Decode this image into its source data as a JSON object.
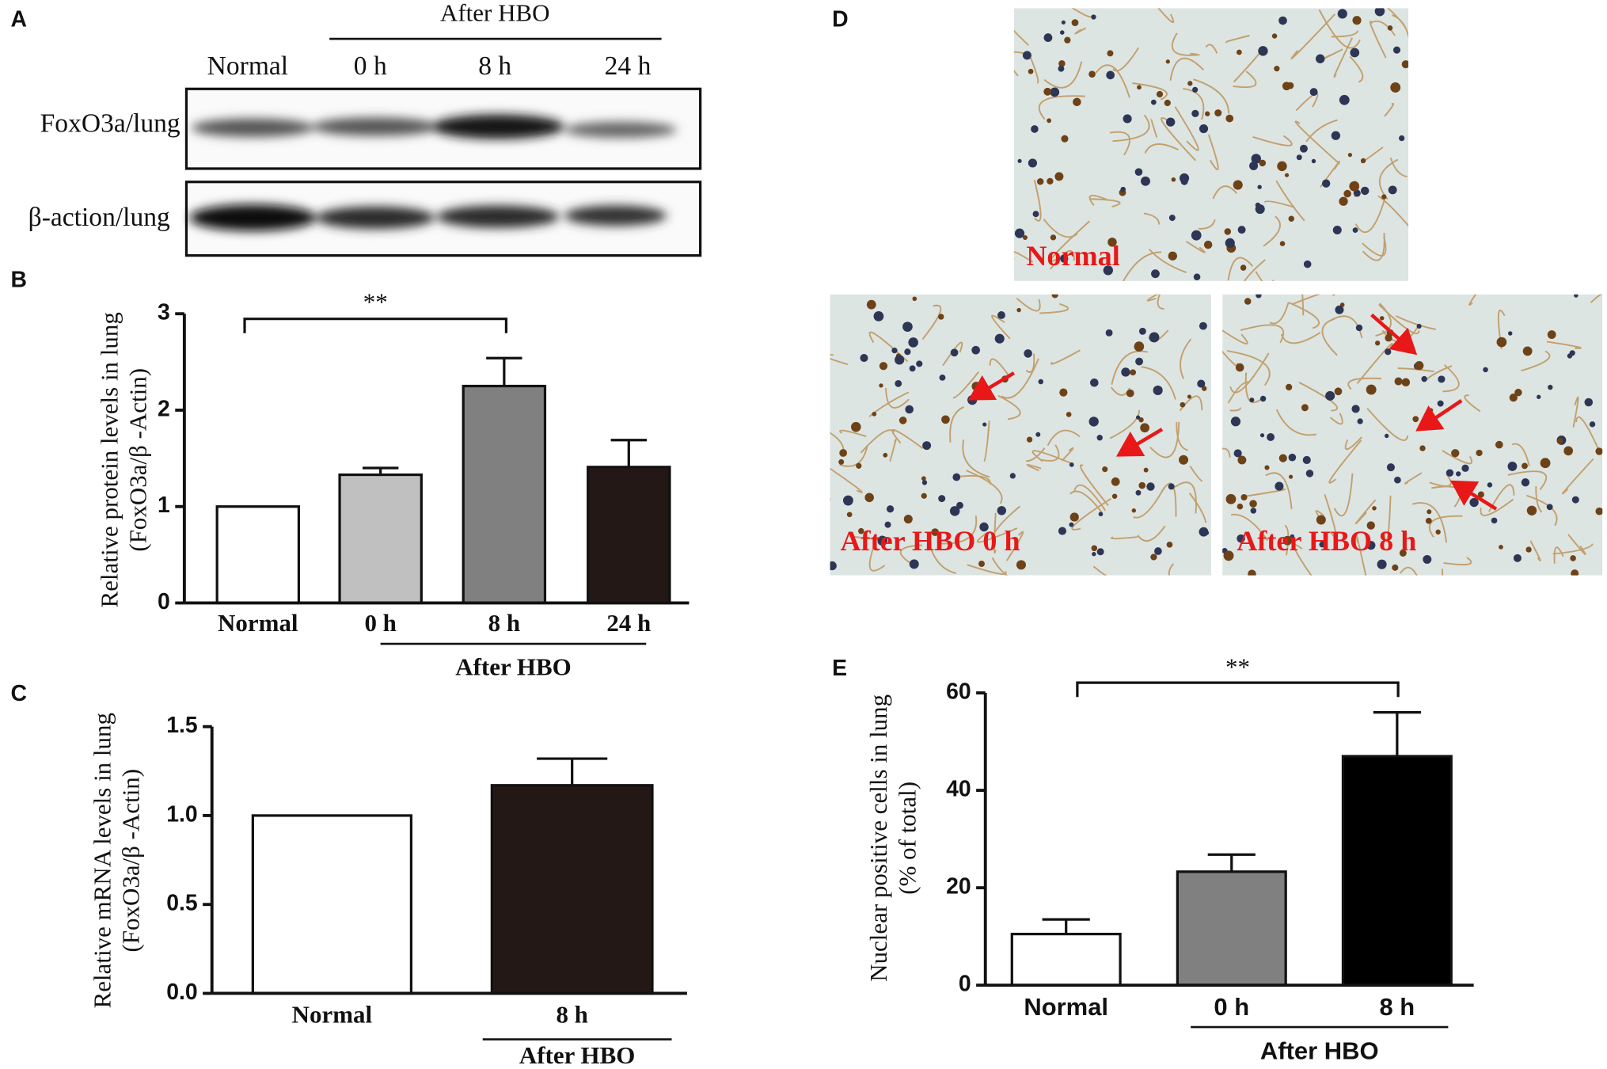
{
  "blot": {
    "panel": "A",
    "header": "After HBO",
    "lanes": [
      "Normal",
      "0 h",
      "8 h",
      "24 h"
    ],
    "rows": [
      "FoxO3a/lung",
      "β-action/lung"
    ]
  },
  "chart_data": [
    {
      "type": "bar",
      "panel": "B",
      "ylabel": [
        "Relative protein levels in lung",
        "(FoxO3a/β -Actin)"
      ],
      "categories": [
        "Normal",
        "0 h",
        "8 h",
        "24 h"
      ],
      "values": [
        1.0,
        1.33,
        2.25,
        1.41
      ],
      "errors": [
        null,
        0.07,
        0.29,
        0.28
      ],
      "colors": [
        "#ffffff",
        "#c0c0c0",
        "#808080",
        "#231816"
      ],
      "ylim": [
        0,
        3
      ],
      "yticks": [
        0,
        1,
        2,
        3
      ],
      "group_label": "After HBO",
      "significance": "**"
    },
    {
      "type": "bar",
      "panel": "C",
      "ylabel": [
        "Relative mRNA levels in lung",
        "(FoxO3a/β -Actin)"
      ],
      "categories": [
        "Normal",
        "8 h"
      ],
      "values": [
        1.0,
        1.17
      ],
      "errors": [
        null,
        0.15
      ],
      "colors": [
        "#ffffff",
        "#231816"
      ],
      "ylim": [
        0,
        1.5
      ],
      "yticks": [
        {
          "value": 0,
          "label": "0.0"
        },
        0.5,
        {
          "value": 1,
          "label": "1.0"
        },
        1.5
      ],
      "group_label": "After HBO"
    },
    {
      "type": "bar",
      "panel": "E",
      "ylabel": [
        "Nuclear positive cells in lung",
        "(% of total)"
      ],
      "categories": [
        "Normal",
        "0 h",
        "8 h"
      ],
      "values": [
        10.5,
        23.3,
        47
      ],
      "errors": [
        3,
        3.5,
        9
      ],
      "colors": [
        "#ffffff",
        "#808080",
        "#000000"
      ],
      "ylim": [
        0,
        60
      ],
      "yticks": [
        0,
        20,
        40,
        60
      ],
      "group_label": "After HBO",
      "significance": "**"
    }
  ],
  "histology": {
    "panel": "D",
    "images": [
      "Normal",
      "After HBO 0 h",
      "After HBO 8 h"
    ]
  }
}
